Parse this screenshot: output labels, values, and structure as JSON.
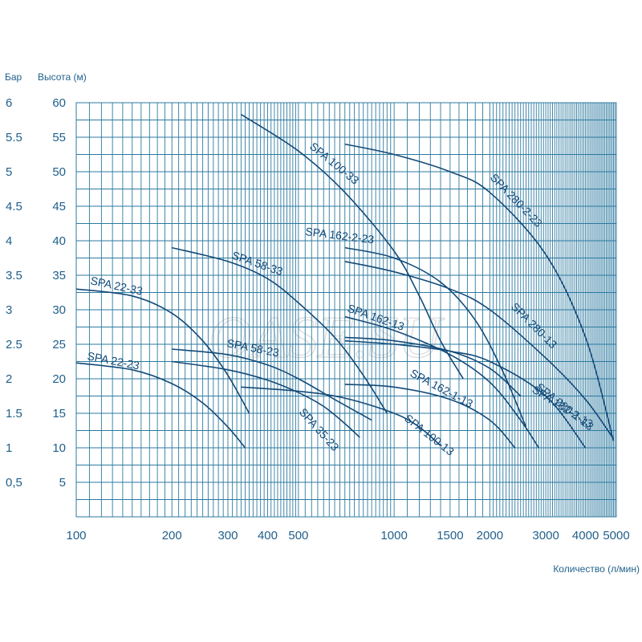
{
  "watermark": "OASE.SU",
  "chart_data": {
    "type": "line",
    "title": "",
    "xlabel": "Количество (л/мин)",
    "ylabel_left": "Бар",
    "ylabel_right": "Высота (м)",
    "x_scale": "log",
    "xlim": [
      100,
      5000
    ],
    "ylim": [
      0,
      60
    ],
    "grid": true,
    "x_ticks": [
      100,
      200,
      300,
      400,
      500,
      1000,
      1500,
      2000,
      3000,
      4000,
      5000
    ],
    "y_ticks_m": [
      5,
      10,
      15,
      20,
      25,
      30,
      35,
      40,
      45,
      50,
      55,
      60
    ],
    "y_ticks_bar": [
      "0,5",
      "1",
      "1.5",
      "2",
      "2.5",
      "3",
      "3.5",
      "4",
      "4.5",
      "5",
      "5.5",
      "6"
    ],
    "series": [
      {
        "name": "SPA 22-23",
        "x": [
          100,
          150,
          200,
          250,
          300,
          340
        ],
        "y": [
          22.3,
          21.3,
          19.3,
          16.5,
          13,
          10
        ]
      },
      {
        "name": "SPA 22-33",
        "x": [
          100,
          150,
          200,
          250,
          300,
          350
        ],
        "y": [
          33,
          32,
          29.5,
          25.5,
          20.5,
          15
        ]
      },
      {
        "name": "SPA 35-23",
        "x": [
          200,
          300,
          400,
          500,
          600,
          700,
          780
        ],
        "y": [
          22.5,
          21.3,
          19.8,
          18,
          16,
          13.5,
          11.5
        ]
      },
      {
        "name": "SPA 58-23",
        "x": [
          200,
          300,
          400,
          500,
          650,
          850
        ],
        "y": [
          24.3,
          23.5,
          22,
          20,
          17,
          14
        ]
      },
      {
        "name": "SPA 58-33",
        "x": [
          200,
          300,
          400,
          500,
          650,
          800,
          950
        ],
        "y": [
          39,
          37,
          34.5,
          31,
          26,
          20.5,
          15
        ]
      },
      {
        "name": "SPA 100-13",
        "x": [
          330,
          500,
          700,
          1000,
          1200,
          1400
        ],
        "y": [
          18.8,
          18.2,
          17.2,
          15,
          13,
          10.3
        ]
      },
      {
        "name": "SPA 100-33",
        "x": [
          330,
          500,
          700,
          1000,
          1200,
          1400,
          1650
        ],
        "y": [
          58.3,
          53,
          47,
          38.5,
          32,
          25.5,
          20
        ]
      },
      {
        "name": "SPA 162-1-13",
        "x": [
          700,
          1000,
          1500,
          2000,
          2400
        ],
        "y": [
          19.2,
          18.8,
          17,
          14,
          10
        ]
      },
      {
        "name": "SPA 162-13",
        "x": [
          700,
          1000,
          1500,
          2000,
          2500
        ],
        "y": [
          26,
          25.5,
          24,
          21.5,
          17.5
        ]
      },
      {
        "name": "SPA 162-2-13",
        "x": [
          700,
          1000,
          1500,
          2000,
          2500,
          2850
        ],
        "y": [
          29,
          27,
          23.5,
          19.5,
          14,
          10
        ]
      },
      {
        "name": "SPA 162-2-23",
        "x": [
          700,
          1000,
          1400,
          1800,
          2200,
          2600
        ],
        "y": [
          39,
          37.5,
          34,
          28.5,
          21,
          13
        ]
      },
      {
        "name": "SPA 280-1-13",
        "x": [
          700,
          1000,
          1500,
          2000,
          3000,
          4000
        ],
        "y": [
          25.5,
          25,
          24,
          22.5,
          17.5,
          10
        ]
      },
      {
        "name": "SPA 280-13",
        "x": [
          700,
          1000,
          1500,
          2000,
          3000,
          4000,
          4900
        ],
        "y": [
          37,
          35.5,
          33,
          30,
          23,
          17,
          11.3
        ]
      },
      {
        "name": "SPA 280-2-23",
        "x": [
          700,
          1000,
          1500,
          2000,
          3000,
          4000,
          4900
        ],
        "y": [
          54,
          52.5,
          50,
          47,
          38,
          26,
          11
        ]
      }
    ]
  }
}
